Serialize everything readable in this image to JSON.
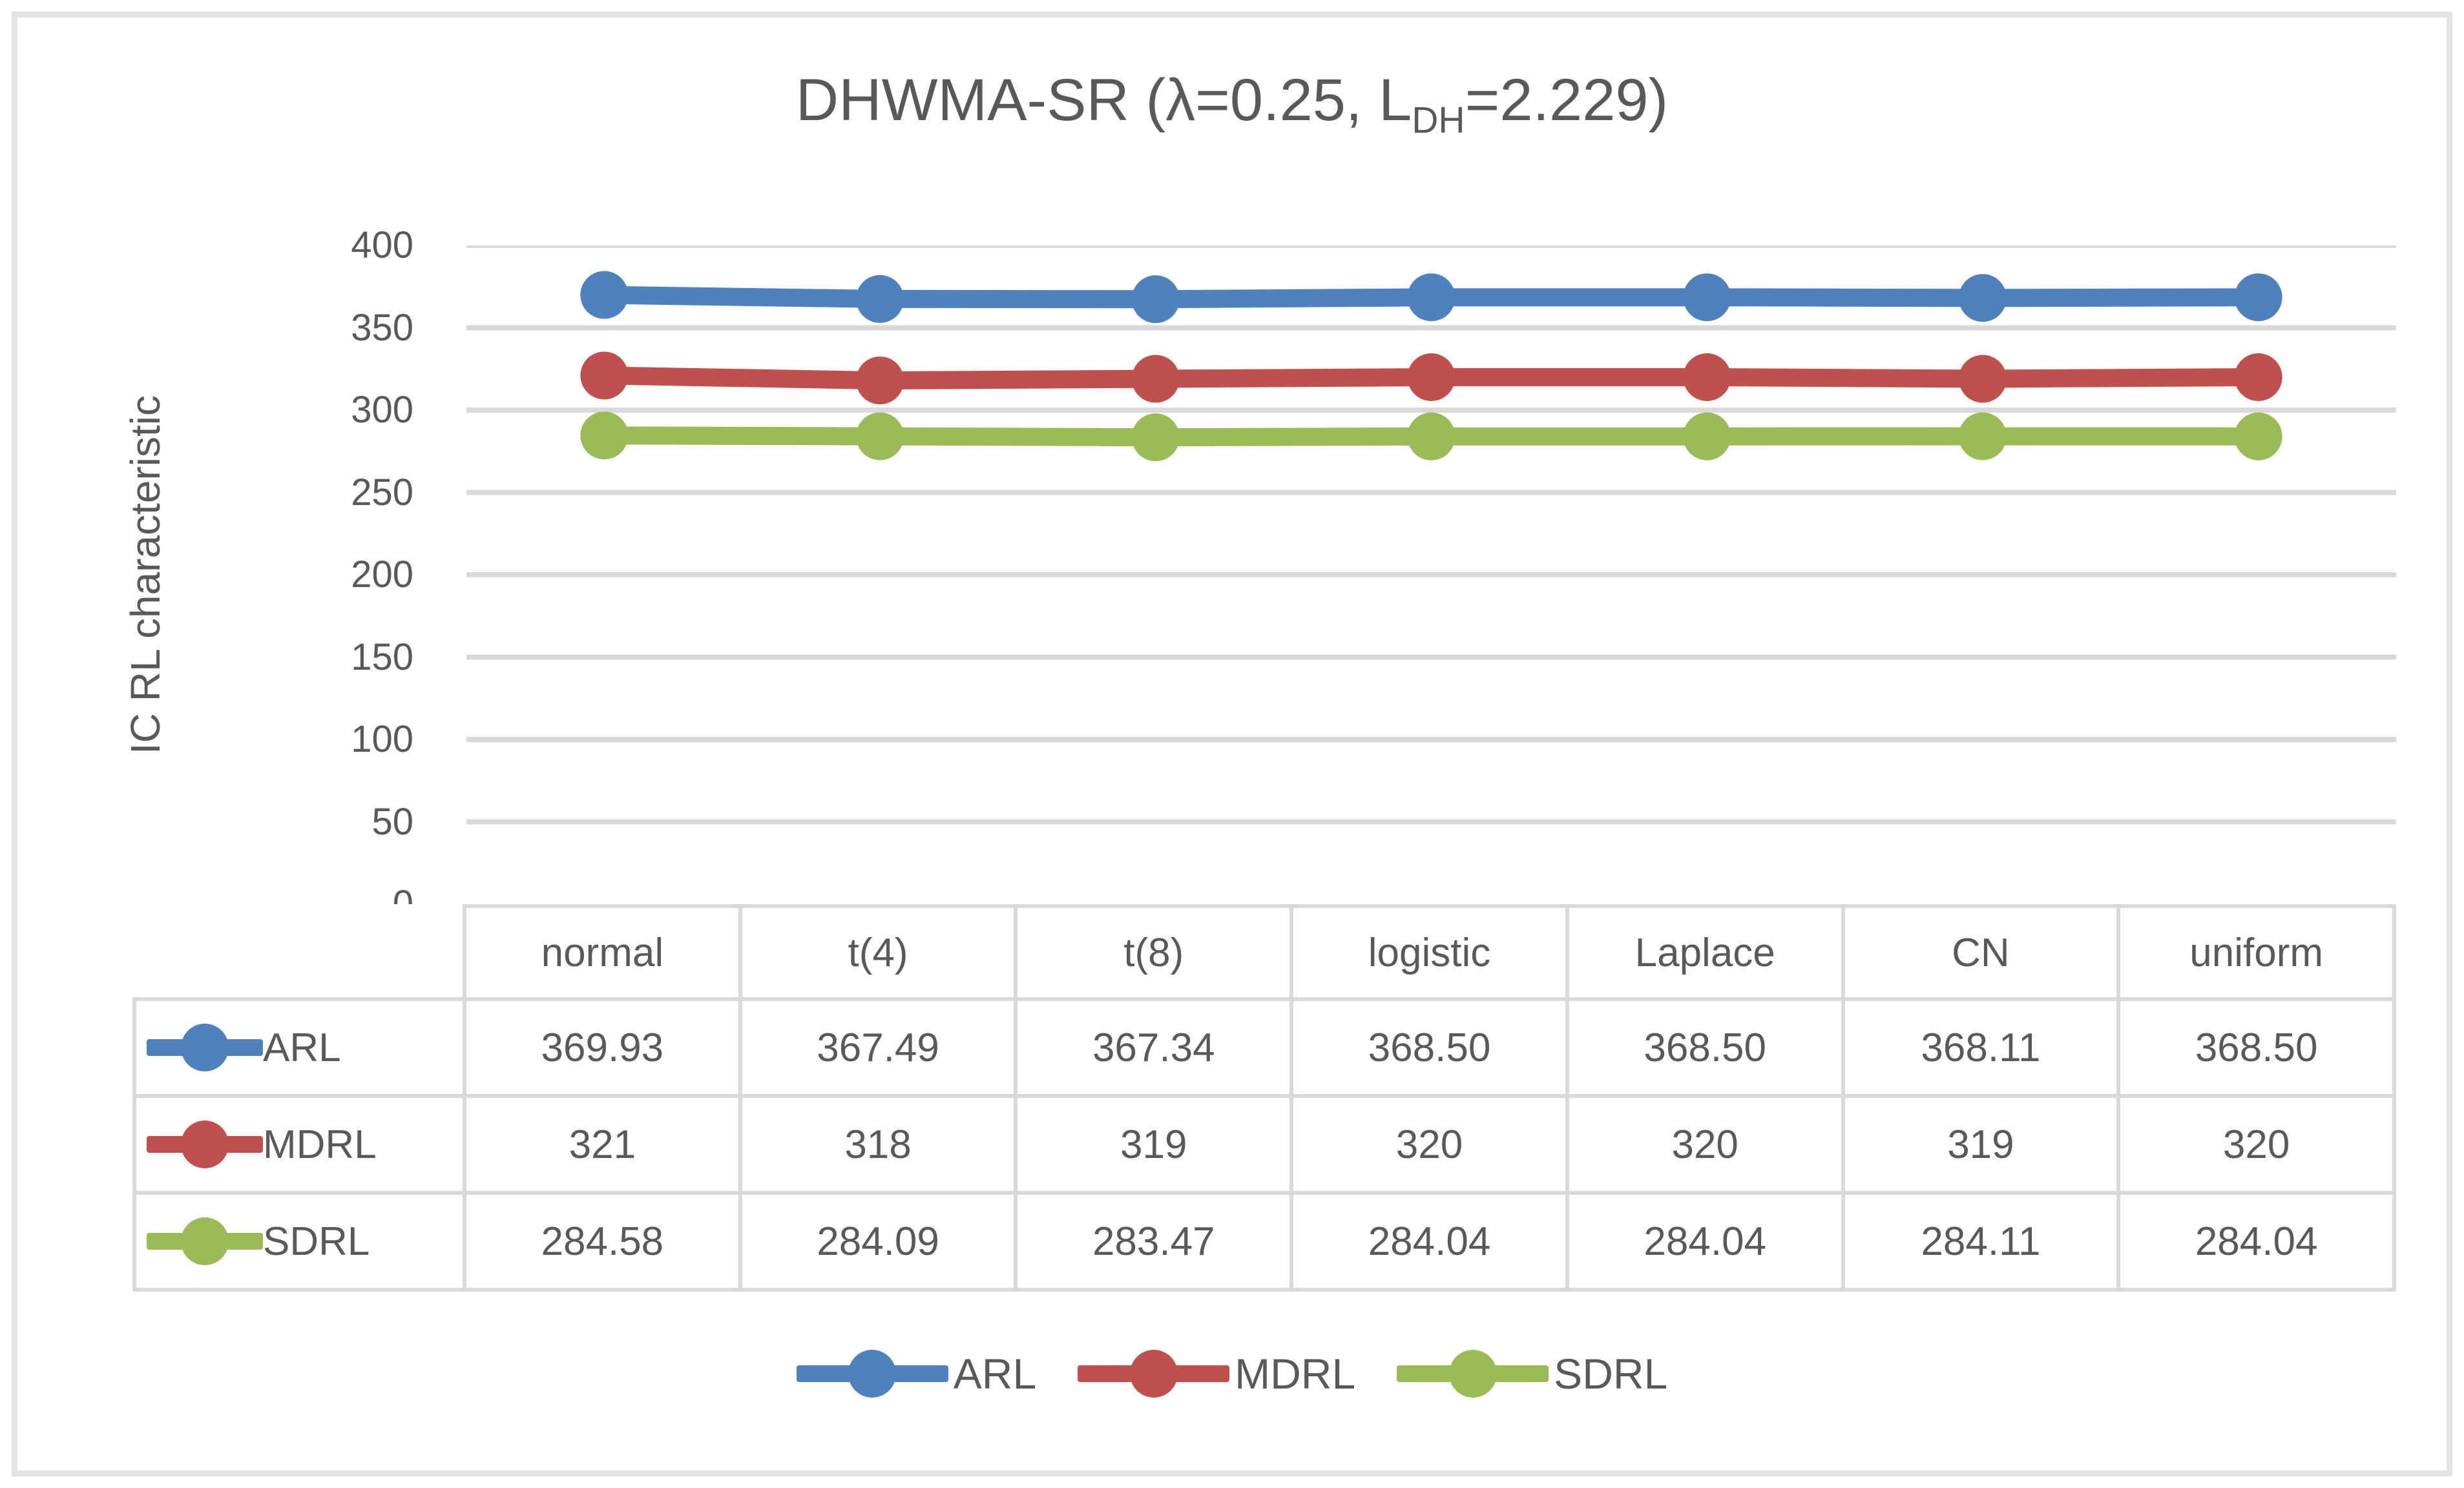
{
  "title": {
    "prefix": "DHWMA-SR (λ=0.25, L",
    "subscript": "DH",
    "suffix": "=2.229)"
  },
  "colors": {
    "series_arl": "#4F81BD",
    "series_mdrl": "#C0504D",
    "series_sdrl": "#9BBB59",
    "gridline": "#d9d9d9",
    "table_border": "#d9d9d9",
    "text": "#595959",
    "outer_frame": "#e3e3e3"
  },
  "chart_data": {
    "type": "line",
    "title": "DHWMA-SR (λ=0.25, L_DH=2.229)",
    "xlabel": "",
    "ylabel": "IC RL characteristic",
    "ylim": [
      0,
      400
    ],
    "yticks": [
      0,
      50,
      100,
      150,
      200,
      250,
      300,
      350,
      400
    ],
    "grid": "horizontal",
    "legend_position": "bottom",
    "marker": "circle",
    "categories": [
      "normal",
      "t(4)",
      "t(8)",
      "logistic",
      "Laplace",
      "CN",
      "uniform"
    ],
    "series": [
      {
        "name": "ARL",
        "color": "#4F81BD",
        "values": [
          369.93,
          367.49,
          367.34,
          368.5,
          368.5,
          368.11,
          368.5
        ],
        "display": [
          "369.93",
          "367.49",
          "367.34",
          "368.50",
          "368.50",
          "368.11",
          "368.50"
        ]
      },
      {
        "name": "MDRL",
        "color": "#C0504D",
        "values": [
          321,
          318,
          319,
          320,
          320,
          319,
          320
        ],
        "display": [
          "321",
          "318",
          "319",
          "320",
          "320",
          "319",
          "320"
        ]
      },
      {
        "name": "SDRL",
        "color": "#9BBB59",
        "values": [
          284.58,
          284.09,
          283.47,
          284.04,
          284.04,
          284.11,
          284.04
        ],
        "display": [
          "284.58",
          "284.09",
          "283.47",
          "284.04",
          "284.04",
          "284.11",
          "284.04"
        ]
      }
    ]
  },
  "table": {
    "corner_label": ""
  },
  "legend": {
    "items": [
      "ARL",
      "MDRL",
      "SDRL"
    ]
  }
}
